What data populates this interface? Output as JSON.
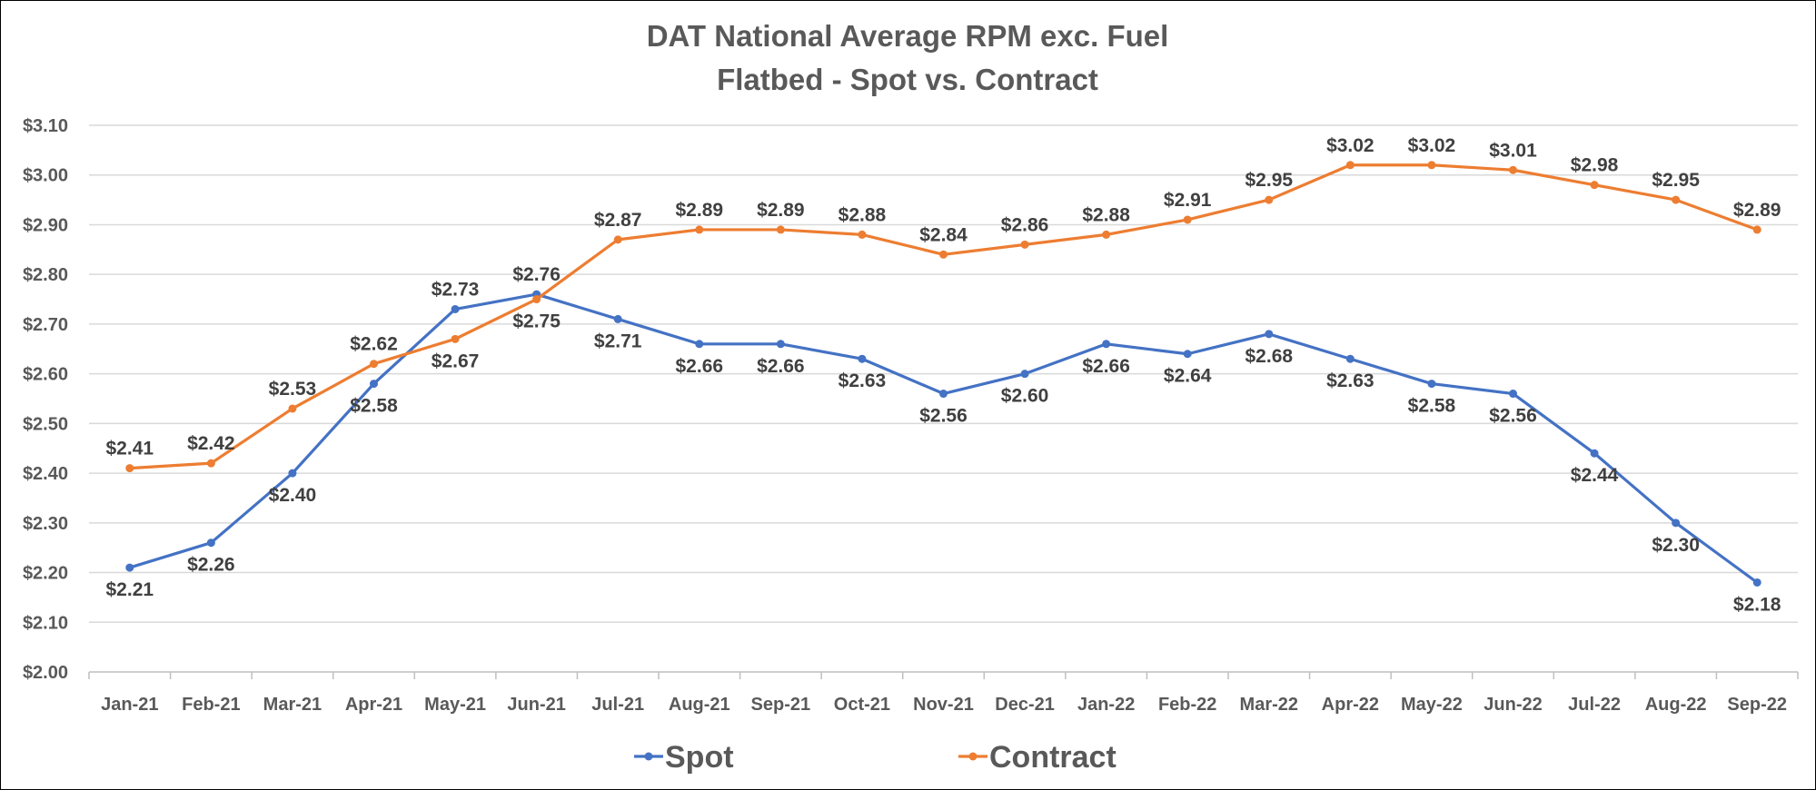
{
  "colors": {
    "spot": "#4472C4",
    "contract": "#ED7D31",
    "grid": "#D9D9D9",
    "axis": "#BFBFBF"
  },
  "chart_data": {
    "type": "line",
    "title": "DAT National Average RPM exc. Fuel",
    "subtitle": "Flatbed - Spot vs. Contract",
    "xlabel": "",
    "ylabel": "",
    "ylim": [
      2.0,
      3.1
    ],
    "ytick_step": 0.1,
    "ytick_labels": [
      "$2.00",
      "$2.10",
      "$2.20",
      "$2.30",
      "$2.40",
      "$2.50",
      "$2.60",
      "$2.70",
      "$2.80",
      "$2.90",
      "$3.00",
      "$3.10"
    ],
    "grid": true,
    "legend_position": "bottom",
    "categories": [
      "Jan-21",
      "Feb-21",
      "Mar-21",
      "Apr-21",
      "May-21",
      "Jun-21",
      "Jul-21",
      "Aug-21",
      "Sep-21",
      "Oct-21",
      "Nov-21",
      "Dec-21",
      "Jan-22",
      "Feb-22",
      "Mar-22",
      "Apr-22",
      "May-22",
      "Jun-22",
      "Jul-22",
      "Aug-22",
      "Sep-22"
    ],
    "series": [
      {
        "name": "Spot",
        "values": [
          2.21,
          2.26,
          2.4,
          2.58,
          2.73,
          2.76,
          2.71,
          2.66,
          2.66,
          2.63,
          2.56,
          2.6,
          2.66,
          2.64,
          2.68,
          2.63,
          2.58,
          2.56,
          2.44,
          2.3,
          2.18
        ],
        "labels": [
          "$2.21",
          "$2.26",
          "$2.40",
          "$2.58",
          "$2.73",
          "$2.76",
          "$2.71",
          "$2.66",
          "$2.66",
          "$2.63",
          "$2.56",
          "$2.60",
          "$2.66",
          "$2.64",
          "$2.68",
          "$2.63",
          "$2.58",
          "$2.56",
          "$2.44",
          "$2.30",
          "$2.18"
        ]
      },
      {
        "name": "Contract",
        "values": [
          2.41,
          2.42,
          2.53,
          2.62,
          2.67,
          2.75,
          2.87,
          2.89,
          2.89,
          2.88,
          2.84,
          2.86,
          2.88,
          2.91,
          2.95,
          3.02,
          3.02,
          3.01,
          2.98,
          2.95,
          2.89
        ],
        "labels": [
          "$2.41",
          "$2.42",
          "$2.53",
          "$2.62",
          "$2.67",
          "$2.75",
          "$2.87",
          "$2.89",
          "$2.89",
          "$2.88",
          "$2.84",
          "$2.86",
          "$2.88",
          "$2.91",
          "$2.95",
          "$3.02",
          "$3.02",
          "$3.01",
          "$2.98",
          "$2.95",
          "$2.89"
        ]
      }
    ]
  }
}
